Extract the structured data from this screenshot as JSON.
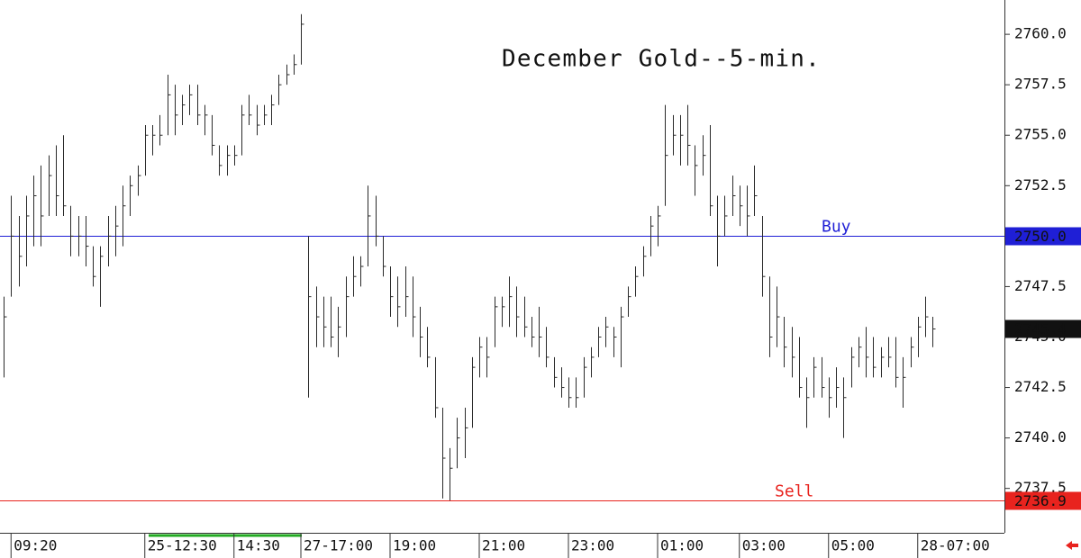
{
  "chart_data": {
    "type": "ohlc",
    "title": "December Gold--5-min.",
    "color": "#2a2a2a",
    "categories": [
      null,
      "09:20",
      null,
      null,
      null,
      null,
      null,
      null,
      null,
      null,
      null,
      null,
      null,
      null,
      null,
      null,
      null,
      null,
      null,
      "25-12:30",
      null,
      null,
      null,
      null,
      null,
      null,
      null,
      null,
      null,
      null,
      null,
      "14:30",
      null,
      null,
      null,
      null,
      null,
      null,
      null,
      null,
      "27-17:00",
      null,
      null,
      null,
      null,
      null,
      null,
      null,
      null,
      null,
      null,
      null,
      "19:00",
      null,
      null,
      null,
      null,
      null,
      null,
      null,
      null,
      null,
      null,
      null,
      "21:00",
      null,
      null,
      null,
      null,
      null,
      null,
      null,
      null,
      null,
      null,
      null,
      "23:00",
      null,
      null,
      null,
      null,
      null,
      null,
      null,
      null,
      null,
      null,
      null,
      "01:00",
      null,
      null,
      null,
      null,
      null,
      null,
      null,
      null,
      null,
      null,
      "03:00",
      null,
      null,
      null,
      null,
      null,
      null,
      null,
      null,
      null,
      null,
      null,
      "05:00",
      null,
      null,
      null,
      null,
      null,
      null,
      null,
      null,
      null,
      null,
      null,
      "28-07:00",
      null,
      null
    ],
    "high": [
      2747,
      2752,
      2751,
      2752,
      2753,
      2753.5,
      2754,
      2754.5,
      2755,
      2751.5,
      2751,
      2751,
      2749.5,
      2749.5,
      2751,
      2751.5,
      2752.5,
      2753,
      2753.5,
      2755.5,
      2755.5,
      2756,
      2758,
      2757.5,
      2757,
      2757.5,
      2757.5,
      2756.5,
      2756,
      2754.5,
      2754.5,
      2754.5,
      2756.5,
      2757,
      2756.5,
      2756.5,
      2757,
      2758,
      2758.5,
      2759,
      2761,
      2750,
      2747.5,
      2747,
      2747,
      2746.5,
      2748,
      2749,
      2749,
      2752.5,
      2752,
      2750,
      2748.5,
      2748,
      2748.5,
      2748,
      2746.5,
      2745.5,
      2744,
      2741.5,
      2739.5,
      2741,
      2741.5,
      2744,
      2745,
      2745,
      2747,
      2747,
      2748,
      2747.5,
      2747,
      2746,
      2746.5,
      2745.5,
      2744,
      2743.5,
      2743,
      2743,
      2744,
      2744.5,
      2745.5,
      2746,
      2745.5,
      2746.5,
      2747.5,
      2748.5,
      2749.5,
      2751,
      2751.5,
      2756.5,
      2756,
      2756,
      2756.5,
      2754.5,
      2755,
      2755.5,
      2752,
      2752,
      2753,
      2752.5,
      2752.5,
      2753.5,
      2751,
      2748,
      2747.5,
      2746,
      2745.5,
      2745,
      2743,
      2744,
      2744,
      2743,
      2743.5,
      2743,
      2744.5,
      2745,
      2745.5,
      2745,
      2744.5,
      2745,
      2745,
      2744,
      2745,
      2746,
      2747,
      2746
    ],
    "low": [
      2743,
      2747,
      2747.5,
      2748.5,
      2749.5,
      2749.5,
      2751,
      2751,
      2751,
      2749,
      2749,
      2748.5,
      2747.5,
      2746.5,
      2748.5,
      2749,
      2749.5,
      2751,
      2752,
      2753,
      2754,
      2754.5,
      2755,
      2755,
      2755.5,
      2756,
      2755.5,
      2755,
      2754,
      2753,
      2753,
      2753.5,
      2754,
      2755.5,
      2755,
      2755.5,
      2755.5,
      2756.5,
      2757.5,
      2758,
      2758.5,
      2742,
      2744.5,
      2744.5,
      2744.5,
      2744,
      2745,
      2747,
      2747.5,
      2748.5,
      2749.5,
      2748,
      2746,
      2745.5,
      2746,
      2745,
      2744,
      2743.5,
      2741,
      2737,
      2736.9,
      2738.5,
      2739,
      2740.5,
      2743,
      2743,
      2744.5,
      2745.5,
      2745.5,
      2745,
      2745,
      2744.5,
      2744,
      2743.5,
      2742.5,
      2742,
      2741.5,
      2741.5,
      2742,
      2743,
      2744,
      2744.5,
      2744,
      2743.5,
      2746,
      2747,
      2748,
      2749,
      2749.5,
      2751.5,
      2754,
      2753.5,
      2753.5,
      2752,
      2753,
      2751,
      2748.5,
      2750,
      2751,
      2750.5,
      2750,
      2751,
      2747,
      2744,
      2744.5,
      2743.5,
      2743,
      2742,
      2740.5,
      2742,
      2742,
      2741,
      2741.5,
      2740,
      2742.5,
      2743.5,
      2743,
      2743,
      2743,
      2743.5,
      2742.5,
      2741.5,
      2743.5,
      2744,
      2745,
      2744.5
    ],
    "close": [
      2746,
      2750,
      2749,
      2751,
      2752,
      2751,
      2753,
      2752,
      2751.5,
      2750,
      2750,
      2749.5,
      2748,
      2749,
      2750,
      2750.5,
      2751.5,
      2752.5,
      2753,
      2755,
      2755,
      2755,
      2757,
      2756,
      2756.5,
      2757,
      2756,
      2756,
      2754.5,
      2753.5,
      2754,
      2754,
      2756,
      2756,
      2755.5,
      2756,
      2756.5,
      2757.5,
      2758,
      2758.5,
      2760.5,
      2747,
      2746,
      2745.5,
      2745,
      2745.5,
      2747,
      2748,
      2748.5,
      2751,
      2750,
      2748.5,
      2747,
      2746.5,
      2747,
      2746,
      2745,
      2744,
      2741.5,
      2739,
      2738.5,
      2740,
      2740.5,
      2743.5,
      2744.5,
      2744,
      2746.5,
      2746.5,
      2747,
      2746,
      2745.5,
      2745,
      2745,
      2744,
      2743,
      2742.5,
      2742,
      2742,
      2743.5,
      2744,
      2745,
      2745.5,
      2745,
      2746,
      2747,
      2748,
      2749,
      2750.5,
      2751,
      2754,
      2755,
      2755,
      2754.5,
      2753.5,
      2754,
      2751.5,
      2750,
      2751,
      2752,
      2751.5,
      2751,
      2752,
      2748,
      2745,
      2746,
      2744.5,
      2744,
      2742.5,
      2742,
      2743.5,
      2742.5,
      2742,
      2742.5,
      2742,
      2744,
      2744.5,
      2744,
      2743.5,
      2744,
      2744,
      2743,
      2743,
      2744.5,
      2745.5,
      2746,
      2745.4
    ],
    "ylim": [
      2735.3,
      2761.7
    ],
    "yticks": [
      2737.5,
      {
        "value": 2740,
        "label": "2740.0"
      },
      2742.5,
      {
        "value": 2745,
        "label": "2745.0"
      },
      2747.5,
      {
        "value": 2750,
        "label": "2750.0"
      },
      2752.5,
      {
        "value": 2755,
        "label": "2755.0"
      },
      2757.5,
      {
        "value": 2760,
        "label": "2760.0"
      }
    ],
    "levels": [
      {
        "label": "Buy",
        "value": 2750,
        "value_label": "2750.0",
        "color": "#1f1fd6"
      },
      {
        "label": "Sell",
        "value": 2736.9,
        "value_label": "2736.9",
        "color": "#e8231e"
      }
    ],
    "last_price": 2745.4,
    "grid": false
  }
}
